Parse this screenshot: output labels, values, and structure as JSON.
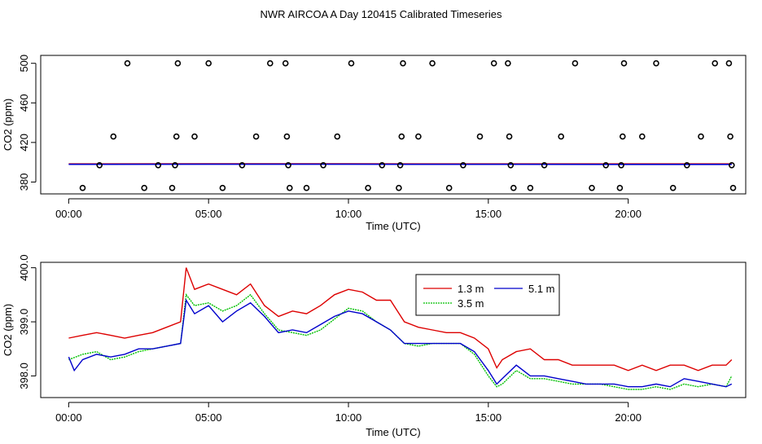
{
  "title": "NWR AIRCOA A  Day 120415  Calibrated Timeseries",
  "colors": {
    "s13": "#dd0000",
    "s35": "#00c000",
    "s51": "#0000cc",
    "points": "#000000"
  },
  "chart_data": [
    {
      "type": "scatter",
      "xlabel": "Time (UTC)",
      "ylabel": "CO2 (ppm)",
      "xlim": [
        -1.0,
        24.2
      ],
      "ylim": [
        368,
        508
      ],
      "xticks": [
        0,
        5,
        10,
        15,
        20
      ],
      "xtick_labels": [
        "00:00",
        "05:00",
        "10:00",
        "15:00",
        "20:00"
      ],
      "yticks": [
        380,
        420,
        460,
        500
      ],
      "ytick_labels": [
        "380",
        "420",
        "460",
        "500"
      ],
      "points": [
        {
          "x": 0.5,
          "y": 374
        },
        {
          "x": 1.1,
          "y": 397
        },
        {
          "x": 1.6,
          "y": 426
        },
        {
          "x": 2.1,
          "y": 500
        },
        {
          "x": 2.7,
          "y": 374
        },
        {
          "x": 3.2,
          "y": 397
        },
        {
          "x": 3.7,
          "y": 374
        },
        {
          "x": 3.8,
          "y": 397
        },
        {
          "x": 3.85,
          "y": 426
        },
        {
          "x": 3.9,
          "y": 500
        },
        {
          "x": 4.5,
          "y": 426
        },
        {
          "x": 5.0,
          "y": 500
        },
        {
          "x": 5.5,
          "y": 374
        },
        {
          "x": 6.2,
          "y": 397
        },
        {
          "x": 6.7,
          "y": 426
        },
        {
          "x": 7.2,
          "y": 500
        },
        {
          "x": 7.75,
          "y": 500
        },
        {
          "x": 7.8,
          "y": 426
        },
        {
          "x": 7.85,
          "y": 397
        },
        {
          "x": 7.9,
          "y": 374
        },
        {
          "x": 8.5,
          "y": 374
        },
        {
          "x": 9.1,
          "y": 397
        },
        {
          "x": 9.6,
          "y": 426
        },
        {
          "x": 10.1,
          "y": 500
        },
        {
          "x": 10.7,
          "y": 374
        },
        {
          "x": 11.2,
          "y": 397
        },
        {
          "x": 11.8,
          "y": 374
        },
        {
          "x": 11.85,
          "y": 397
        },
        {
          "x": 11.9,
          "y": 426
        },
        {
          "x": 11.95,
          "y": 500
        },
        {
          "x": 12.5,
          "y": 426
        },
        {
          "x": 13.0,
          "y": 500
        },
        {
          "x": 13.6,
          "y": 374
        },
        {
          "x": 14.1,
          "y": 397
        },
        {
          "x": 14.7,
          "y": 426
        },
        {
          "x": 15.2,
          "y": 500
        },
        {
          "x": 15.7,
          "y": 500
        },
        {
          "x": 15.75,
          "y": 426
        },
        {
          "x": 15.8,
          "y": 397
        },
        {
          "x": 15.9,
          "y": 374
        },
        {
          "x": 16.5,
          "y": 374
        },
        {
          "x": 17.0,
          "y": 397
        },
        {
          "x": 17.6,
          "y": 426
        },
        {
          "x": 18.1,
          "y": 500
        },
        {
          "x": 18.7,
          "y": 374
        },
        {
          "x": 19.2,
          "y": 397
        },
        {
          "x": 19.7,
          "y": 374
        },
        {
          "x": 19.75,
          "y": 397
        },
        {
          "x": 19.8,
          "y": 426
        },
        {
          "x": 19.85,
          "y": 500
        },
        {
          "x": 20.5,
          "y": 426
        },
        {
          "x": 21.0,
          "y": 500
        },
        {
          "x": 21.6,
          "y": 374
        },
        {
          "x": 22.1,
          "y": 397
        },
        {
          "x": 22.6,
          "y": 426
        },
        {
          "x": 23.1,
          "y": 500
        },
        {
          "x": 23.6,
          "y": 500
        },
        {
          "x": 23.65,
          "y": 426
        },
        {
          "x": 23.7,
          "y": 397
        },
        {
          "x": 23.75,
          "y": 374
        }
      ],
      "series": [
        {
          "name": "1.3 m",
          "color_key": "s13",
          "x": [
            0,
            5,
            10,
            15,
            20,
            23.7
          ],
          "values": [
            398.3,
            398.4,
            398.4,
            398.3,
            398.3,
            398.3
          ]
        },
        {
          "name": "5.1 m",
          "color_key": "s51",
          "x": [
            0,
            5,
            10,
            15,
            20,
            23.7
          ],
          "values": [
            397.9,
            398.0,
            398.0,
            397.9,
            397.8,
            397.8
          ]
        }
      ]
    },
    {
      "type": "line",
      "xlabel": "Time (UTC)",
      "ylabel": "CO2 (ppm)",
      "xlim": [
        -1.0,
        24.2
      ],
      "ylim": [
        397.6,
        400.1
      ],
      "xticks": [
        0,
        5,
        10,
        15,
        20
      ],
      "xtick_labels": [
        "00:00",
        "05:00",
        "10:00",
        "15:00",
        "20:00"
      ],
      "yticks": [
        398.0,
        399.0,
        400.0
      ],
      "ytick_labels": [
        "398.0",
        "399.0",
        "400.0"
      ],
      "legend": {
        "position": "top-center",
        "entries": [
          "1.3 m",
          "5.1 m",
          "3.5 m"
        ]
      },
      "series": [
        {
          "name": "1.3 m",
          "color_key": "s13",
          "x": [
            0,
            0.5,
            1,
            1.5,
            2,
            2.5,
            3,
            3.5,
            4,
            4.2,
            4.5,
            5,
            5.5,
            6,
            6.5,
            7,
            7.5,
            8,
            8.5,
            9,
            9.5,
            10,
            10.5,
            11,
            11.5,
            12,
            12.5,
            13,
            13.5,
            14,
            14.5,
            15,
            15.3,
            15.5,
            16,
            16.5,
            17,
            17.5,
            18,
            18.5,
            19,
            19.5,
            20,
            20.5,
            21,
            21.5,
            22,
            22.5,
            23,
            23.5,
            23.7
          ],
          "values": [
            398.7,
            398.75,
            398.8,
            398.75,
            398.7,
            398.75,
            398.8,
            398.9,
            399.0,
            400.0,
            399.6,
            399.7,
            399.6,
            399.5,
            399.7,
            399.3,
            399.1,
            399.2,
            399.15,
            399.3,
            399.5,
            399.6,
            399.55,
            399.4,
            399.4,
            399.0,
            398.9,
            398.85,
            398.8,
            398.8,
            398.7,
            398.5,
            398.15,
            398.3,
            398.45,
            398.5,
            398.3,
            398.3,
            398.2,
            398.2,
            398.2,
            398.2,
            398.1,
            398.2,
            398.1,
            398.2,
            398.2,
            398.1,
            398.2,
            398.2,
            398.3
          ]
        },
        {
          "name": "3.5 m",
          "color_key": "s35",
          "x": [
            0,
            0.5,
            1,
            1.5,
            2,
            2.5,
            3,
            3.5,
            4,
            4.2,
            4.5,
            5,
            5.5,
            6,
            6.5,
            7,
            7.5,
            8,
            8.5,
            9,
            9.5,
            10,
            10.5,
            11,
            11.5,
            12,
            12.5,
            13,
            13.5,
            14,
            14.5,
            15,
            15.3,
            15.5,
            16,
            16.5,
            17,
            17.5,
            18,
            18.5,
            19,
            19.5,
            20,
            20.5,
            21,
            21.5,
            22,
            22.5,
            23,
            23.5,
            23.7
          ],
          "values": [
            398.3,
            398.4,
            398.45,
            398.3,
            398.35,
            398.45,
            398.5,
            398.55,
            398.6,
            399.5,
            399.3,
            399.35,
            399.2,
            399.3,
            399.5,
            399.15,
            398.85,
            398.8,
            398.75,
            398.85,
            399.05,
            399.25,
            399.2,
            399.0,
            398.85,
            398.6,
            398.55,
            398.6,
            398.6,
            398.6,
            398.4,
            398.0,
            397.8,
            397.85,
            398.1,
            397.95,
            397.95,
            397.9,
            397.85,
            397.85,
            397.85,
            397.8,
            397.75,
            397.75,
            397.8,
            397.75,
            397.85,
            397.8,
            397.85,
            397.8,
            398.0
          ]
        },
        {
          "name": "5.1 m",
          "color_key": "s51",
          "x": [
            0,
            0.2,
            0.5,
            1,
            1.5,
            2,
            2.5,
            3,
            3.5,
            4,
            4.2,
            4.5,
            5,
            5.5,
            6,
            6.5,
            7,
            7.5,
            8,
            8.5,
            9,
            9.5,
            10,
            10.5,
            11,
            11.5,
            12,
            12.5,
            13,
            13.5,
            14,
            14.5,
            15,
            15.3,
            15.5,
            16,
            16.5,
            17,
            17.5,
            18,
            18.5,
            19,
            19.5,
            20,
            20.5,
            21,
            21.5,
            22,
            22.5,
            23,
            23.5,
            23.7
          ],
          "values": [
            398.35,
            398.1,
            398.3,
            398.4,
            398.35,
            398.4,
            398.5,
            398.5,
            398.55,
            398.6,
            399.4,
            399.15,
            399.3,
            399.0,
            399.2,
            399.35,
            399.1,
            398.8,
            398.85,
            398.8,
            398.95,
            399.1,
            399.2,
            399.15,
            399.0,
            398.85,
            398.6,
            398.6,
            398.6,
            398.6,
            398.6,
            398.45,
            398.1,
            397.85,
            397.95,
            398.2,
            398.0,
            398.0,
            397.95,
            397.9,
            397.85,
            397.85,
            397.85,
            397.8,
            397.8,
            397.85,
            397.8,
            397.95,
            397.9,
            397.85,
            397.8,
            397.85
          ]
        }
      ]
    }
  ]
}
